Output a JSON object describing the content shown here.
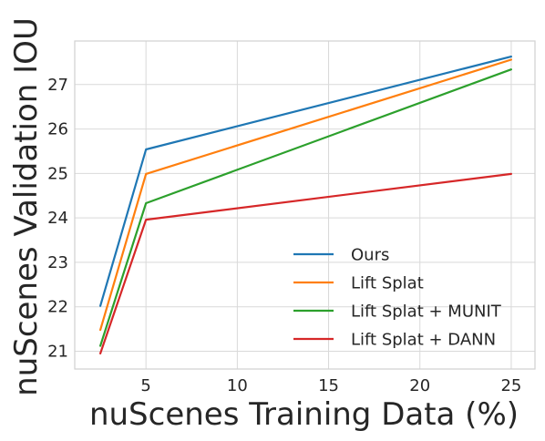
{
  "chart_data": {
    "type": "line",
    "title": "",
    "xlabel": "nuScenes Training Data (%)",
    "ylabel": "nuScenes Validation IOU",
    "x": [
      2.5,
      5,
      25
    ],
    "xlim": [
      1.1,
      26.3
    ],
    "ylim": [
      20.6,
      27.98
    ],
    "xticks": [
      5,
      10,
      15,
      20,
      25
    ],
    "yticks": [
      21,
      22,
      23,
      24,
      25,
      26,
      27
    ],
    "grid": true,
    "legend_position": "lower-right",
    "series": [
      {
        "name": "Ours",
        "color": "#1f77b4",
        "values": [
          22.02,
          25.54,
          27.63
        ]
      },
      {
        "name": "Lift Splat",
        "color": "#ff7f0e",
        "values": [
          21.48,
          24.99,
          27.56
        ]
      },
      {
        "name": "Lift Splat + MUNIT",
        "color": "#2ca02c",
        "values": [
          21.12,
          24.33,
          27.34
        ]
      },
      {
        "name": "Lift Splat + DANN",
        "color": "#d62728",
        "values": [
          20.95,
          23.96,
          24.99
        ]
      }
    ]
  }
}
